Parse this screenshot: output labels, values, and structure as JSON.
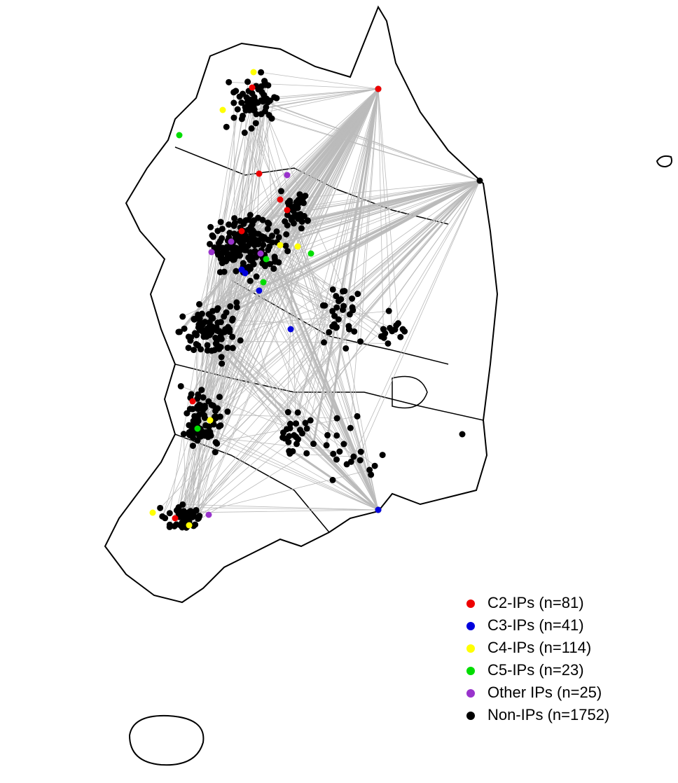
{
  "legend": [
    {
      "label": "C2-IPs (n=81)",
      "color": "#ee0000"
    },
    {
      "label": "C3-IPs (n=41)",
      "color": "#0000dd"
    },
    {
      "label": "C4-IPs (n=114)",
      "color": "#ffff00"
    },
    {
      "label": "C5-IPs (n=23)",
      "color": "#00dd00"
    },
    {
      "label": "Other IPs (n=25)",
      "color": "#9933cc"
    },
    {
      "label": "Non-IPs (n=1752)",
      "color": "#000000"
    }
  ]
}
